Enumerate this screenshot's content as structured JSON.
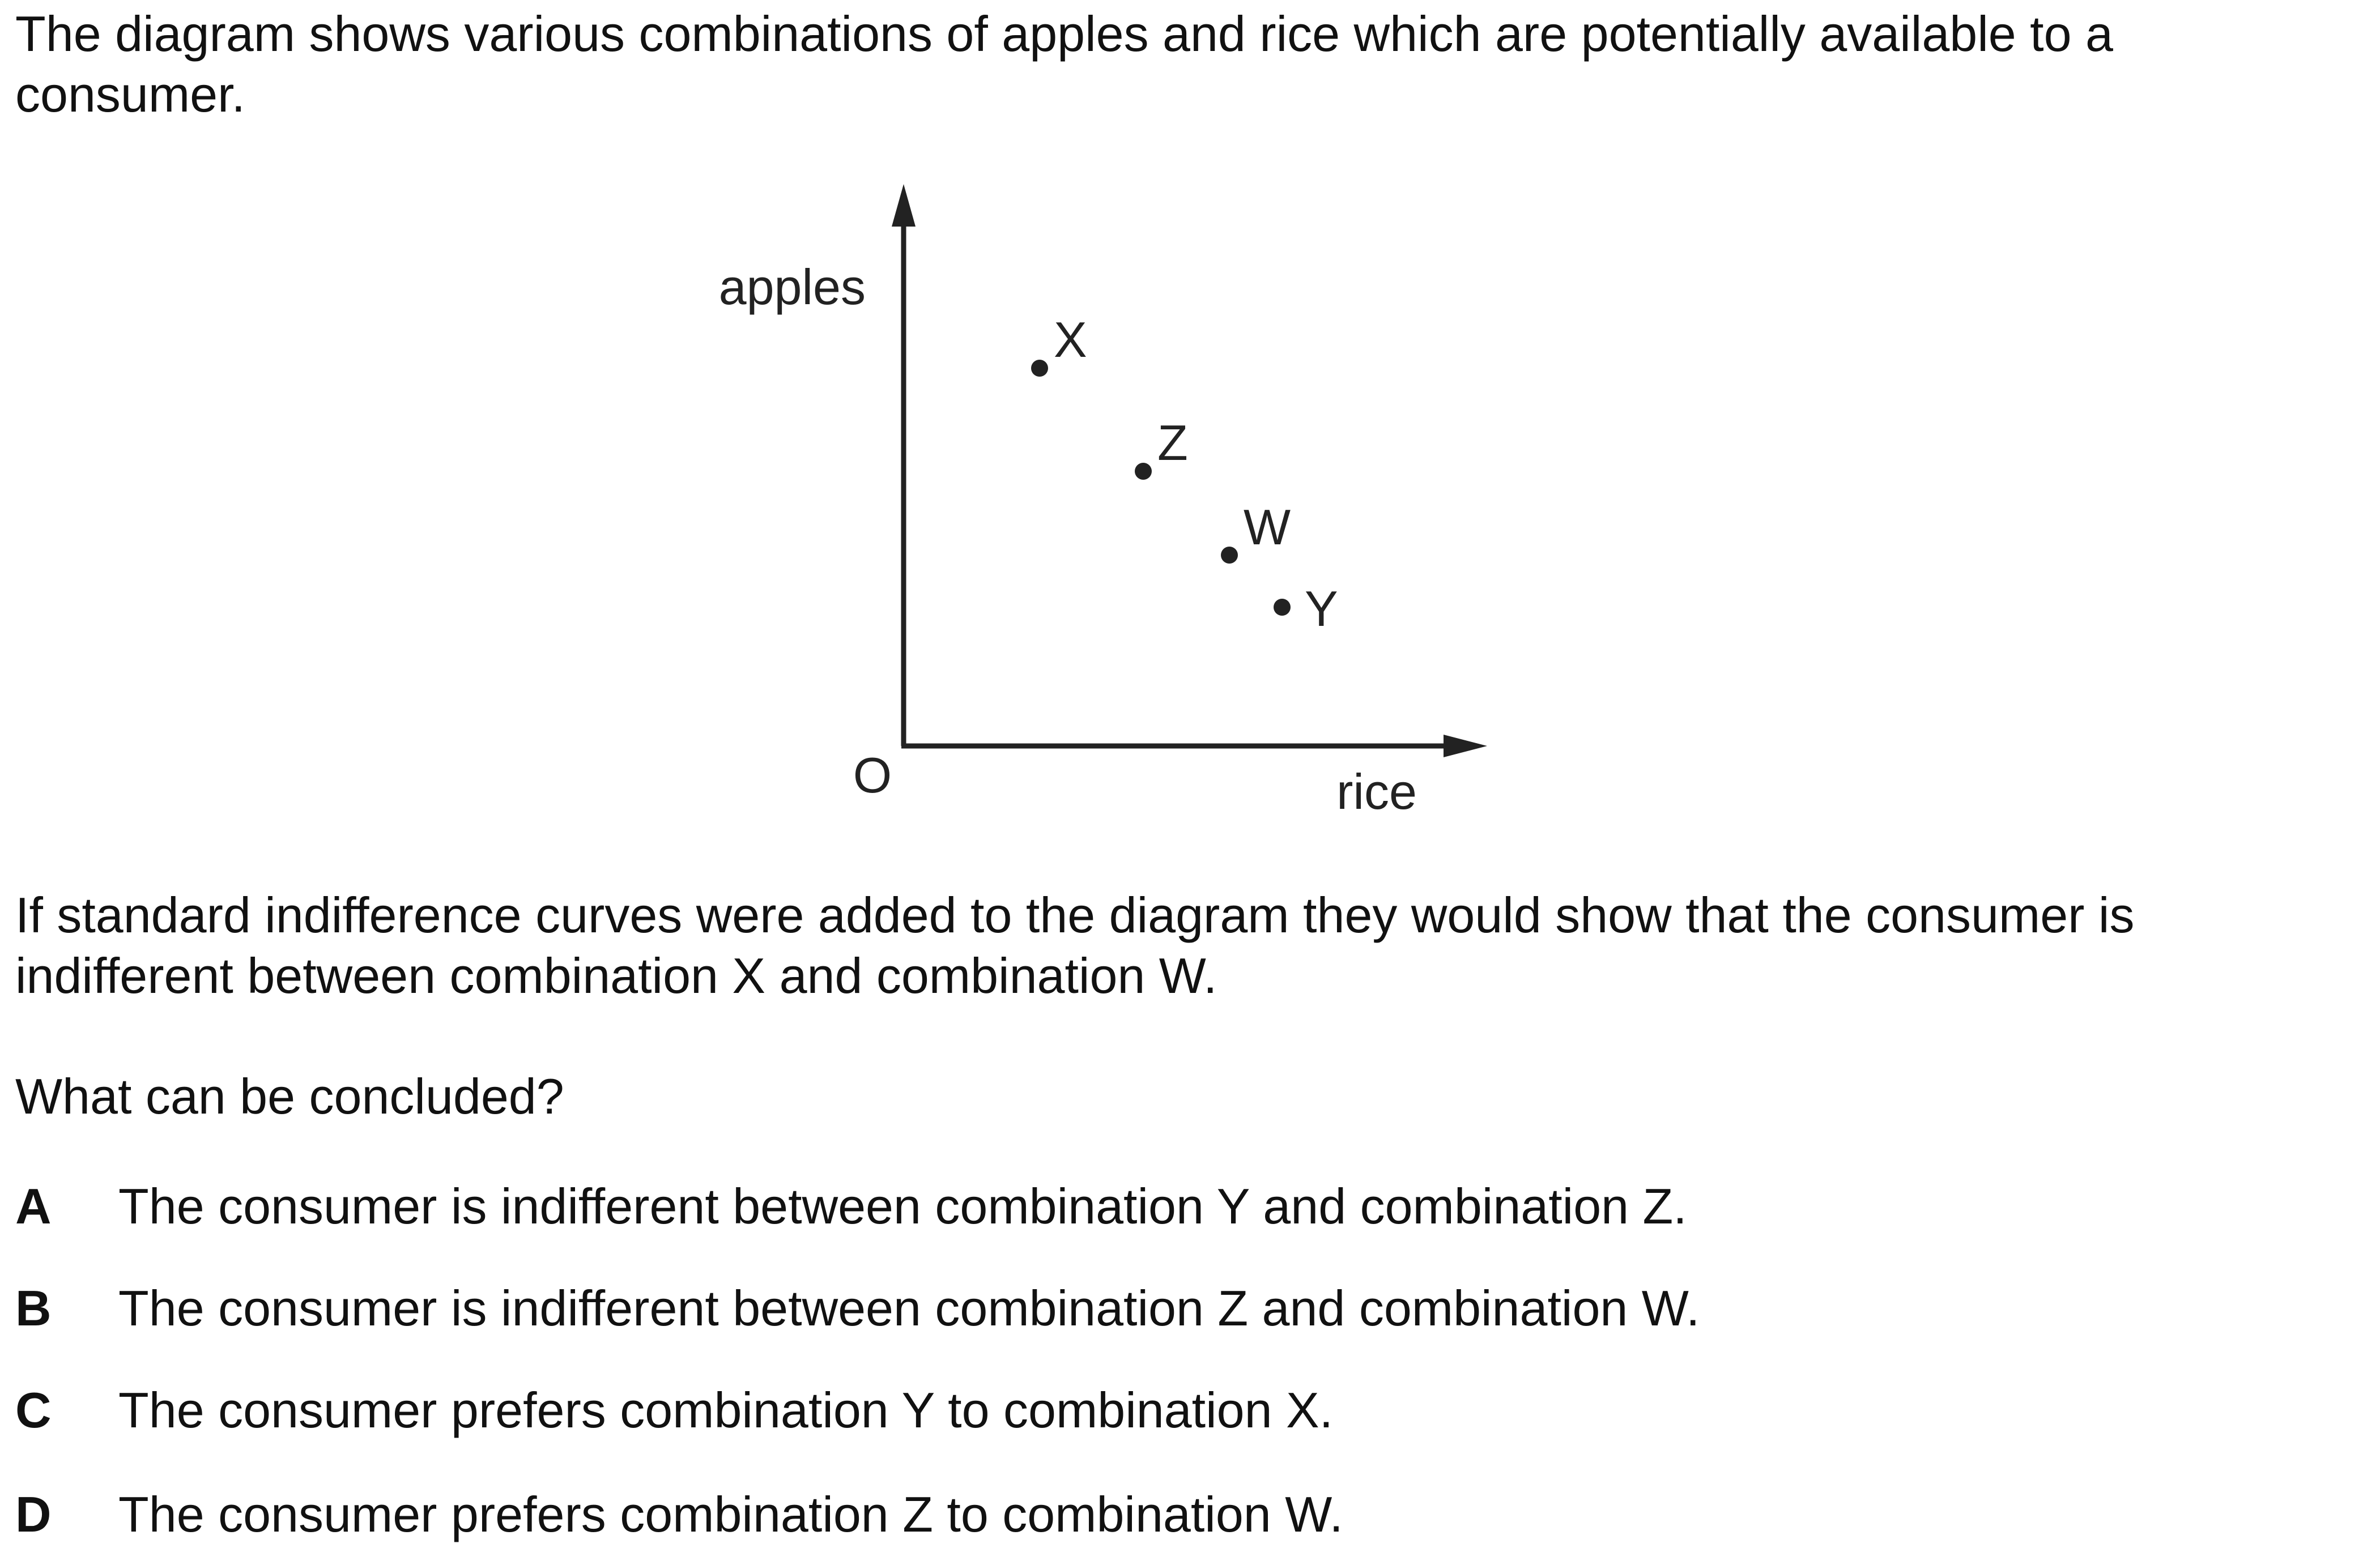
{
  "intro_lines": [
    "The diagram shows various combinations of apples and rice which are potentially available to a",
    "consumer."
  ],
  "diagram": {
    "y_axis_label": "apples",
    "x_axis_label": "rice",
    "origin_label": "O",
    "points": [
      {
        "label": "X"
      },
      {
        "label": "Z"
      },
      {
        "label": "W"
      },
      {
        "label": "Y"
      }
    ]
  },
  "setup_lines": [
    "If standard indifference curves were added to the diagram they would show that the consumer is",
    "indifferent between combination X and combination W."
  ],
  "question": "What can be concluded?",
  "options": [
    {
      "letter": "A",
      "text": "The consumer is indifferent between combination Y and combination Z."
    },
    {
      "letter": "B",
      "text": "The consumer is indifferent between combination Z and combination W."
    },
    {
      "letter": "C",
      "text": "The consumer prefers combination Y to combination X."
    },
    {
      "letter": "D",
      "text": "The consumer prefers combination Z to combination W."
    }
  ]
}
